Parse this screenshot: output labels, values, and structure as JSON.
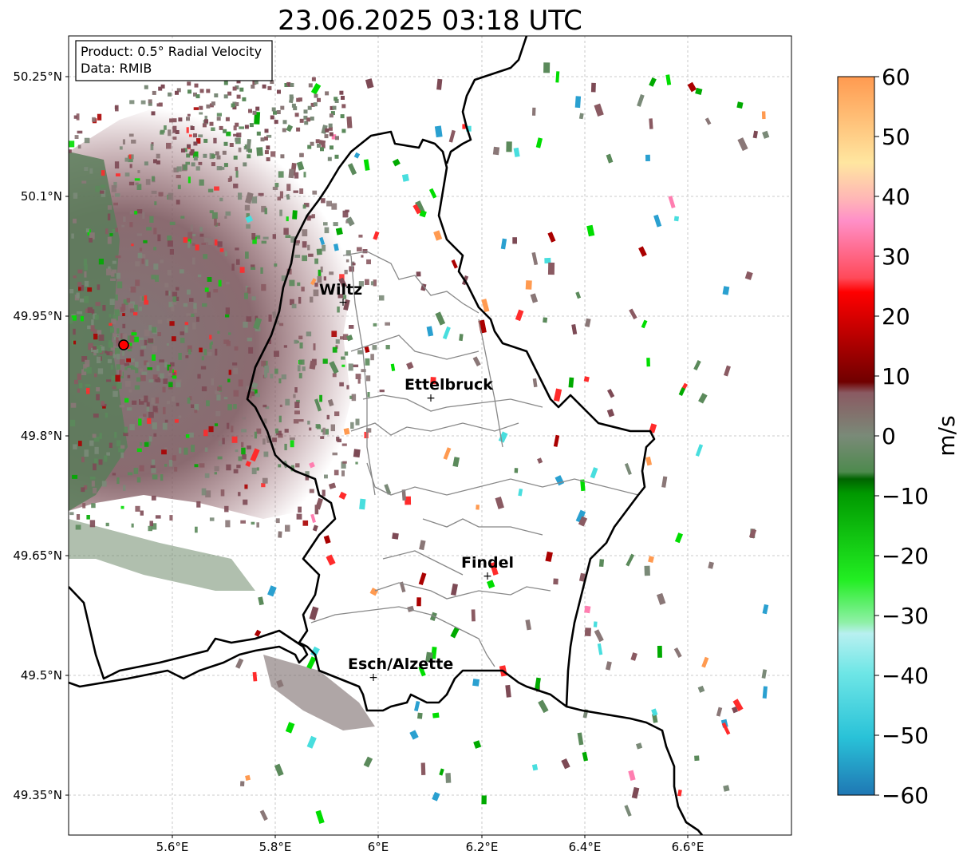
{
  "title": "23.06.2025 03:18 UTC",
  "info": {
    "product": "Product: 0.5° Radial Velocity",
    "data": "Data: RMIB"
  },
  "axes": {
    "lat_ticks": [
      "50.25°N",
      "50.1°N",
      "49.95°N",
      "49.8°N",
      "49.65°N",
      "49.5°N",
      "49.35°N"
    ],
    "lon_ticks": [
      "5.6°E",
      "5.8°E",
      "6°E",
      "6.2°E",
      "6.4°E",
      "6.6°E"
    ]
  },
  "cities": [
    {
      "name": "Wiltz"
    },
    {
      "name": "Ettelbruck"
    },
    {
      "name": "Findel"
    },
    {
      "name": "Esch/Alzette"
    }
  ],
  "colorbar": {
    "label": "m/s",
    "ticks": [
      "60",
      "50",
      "40",
      "30",
      "20",
      "10",
      "0",
      "−10",
      "−20",
      "−30",
      "−40",
      "−50",
      "−60"
    ],
    "range": [
      -60,
      60
    ]
  },
  "colors": {
    "strong_outbound": "#ff9a50",
    "outbound": "#ff2b2b",
    "near_zero_positive": "#8a5a62",
    "near_zero": "#7a8a78",
    "near_zero_negative": "#5b8a5b",
    "inbound": "#00dd00",
    "strong_inbound": "#2aa0d0",
    "border": "#000000"
  }
}
